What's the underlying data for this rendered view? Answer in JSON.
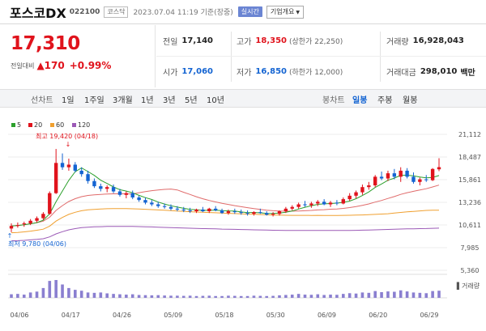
{
  "header": {
    "title": "포스코DX",
    "code": "022100",
    "market": "코스닥",
    "datetime": "2023.07.04 11:19 기준(장중)",
    "realtime_label": "실시간",
    "company_button": "기업개요"
  },
  "price": {
    "current": "17,310",
    "change_label": "전일대비",
    "change": "▲170",
    "change_pct": "+0.99%"
  },
  "stats": {
    "prev_label": "전일",
    "prev": "17,140",
    "high_label": "고가",
    "high": "18,350",
    "upper_limit": "(상한가 22,250)",
    "volume_label": "거래량",
    "volume": "16,928,043",
    "open_label": "시가",
    "open": "17,060",
    "low_label": "저가",
    "low": "16,850",
    "lower_limit": "(하한가 12,000)",
    "amount_label": "거래대금",
    "amount": "298,010",
    "amount_unit": "백만"
  },
  "toolbar": {
    "line_label": "선차트",
    "periods": [
      "1일",
      "1주일",
      "3개월",
      "1년",
      "3년",
      "5년",
      "10년"
    ],
    "candle_label": "봉차트",
    "candles": [
      "일봉",
      "주봉",
      "월봉"
    ],
    "active_candle": "일봉"
  },
  "chart_data": {
    "type": "candlestick",
    "legend": [
      {
        "name": "5",
        "color": "#2ca02c"
      },
      {
        "name": "20",
        "color": "#e0131c"
      },
      {
        "name": "60",
        "color": "#f0a030"
      },
      {
        "name": "120",
        "color": "#9b59b6"
      }
    ],
    "y_ticks": [
      "21,112",
      "18,487",
      "15,861",
      "13,236",
      "10,611",
      "7,985",
      "5,360"
    ],
    "ylim": [
      5360,
      21112
    ],
    "x_ticks": [
      "04/06",
      "04/17",
      "04/26",
      "05/09",
      "05/18",
      "05/30",
      "06/09",
      "06/20",
      "06/29"
    ],
    "high_annotation": "최고 19,420 (04/18)",
    "low_annotation": "최저 9,780 (04/06)",
    "volume_label": "거래량",
    "candles": [
      [
        10200,
        10800,
        9780,
        10500
      ],
      [
        10500,
        10900,
        10300,
        10600
      ],
      [
        10700,
        11000,
        10400,
        10800
      ],
      [
        10800,
        11300,
        10600,
        11100
      ],
      [
        11100,
        11600,
        10900,
        11400
      ],
      [
        11400,
        12100,
        11200,
        11900
      ],
      [
        11900,
        14500,
        11800,
        14300
      ],
      [
        14300,
        19420,
        14200,
        17800
      ],
      [
        17800,
        18900,
        17000,
        17300
      ],
      [
        17300,
        18300,
        16900,
        17600
      ],
      [
        17600,
        17900,
        16700,
        16900
      ],
      [
        16900,
        17300,
        16200,
        16500
      ],
      [
        16500,
        16900,
        15400,
        15700
      ],
      [
        15700,
        16000,
        14900,
        15100
      ],
      [
        15100,
        15400,
        14500,
        14800
      ],
      [
        14800,
        15200,
        14400,
        15000
      ],
      [
        15000,
        15300,
        14300,
        14500
      ],
      [
        14500,
        14800,
        13900,
        14100
      ],
      [
        14100,
        14500,
        13700,
        14300
      ],
      [
        14300,
        14600,
        13600,
        13800
      ],
      [
        13800,
        14000,
        13300,
        13500
      ],
      [
        13500,
        13800,
        13000,
        13200
      ],
      [
        13200,
        13500,
        12800,
        13000
      ],
      [
        13000,
        13300,
        12600,
        12800
      ],
      [
        12800,
        13100,
        12500,
        12700
      ],
      [
        12700,
        13000,
        12300,
        12500
      ],
      [
        12500,
        12800,
        12200,
        12400
      ],
      [
        12400,
        12700,
        12100,
        12300
      ],
      [
        12300,
        12600,
        12000,
        12200
      ],
      [
        12200,
        12500,
        12000,
        12400
      ],
      [
        12400,
        12700,
        12100,
        12200
      ],
      [
        12200,
        12600,
        12000,
        12500
      ],
      [
        12500,
        12800,
        12200,
        12300
      ],
      [
        12300,
        12500,
        11900,
        12000
      ],
      [
        12000,
        12400,
        11800,
        12200
      ],
      [
        12200,
        12500,
        11900,
        12100
      ],
      [
        12100,
        12400,
        11800,
        12000
      ],
      [
        12000,
        12300,
        11700,
        11900
      ],
      [
        11900,
        12200,
        11700,
        12100
      ],
      [
        12100,
        12500,
        11900,
        12000
      ],
      [
        12000,
        12200,
        11700,
        11800
      ],
      [
        11800,
        12100,
        11600,
        11900
      ],
      [
        11900,
        12300,
        11700,
        12200
      ],
      [
        12200,
        12700,
        12000,
        12500
      ],
      [
        12500,
        12900,
        12300,
        12700
      ],
      [
        12700,
        13200,
        12500,
        13000
      ],
      [
        13000,
        13400,
        12700,
        12900
      ],
      [
        12900,
        13300,
        12600,
        13100
      ],
      [
        13100,
        13500,
        12800,
        13300
      ],
      [
        13300,
        13600,
        12900,
        13000
      ],
      [
        13000,
        13400,
        12700,
        13200
      ],
      [
        13200,
        13500,
        12900,
        13100
      ],
      [
        13100,
        13800,
        13000,
        13600
      ],
      [
        13600,
        14300,
        13400,
        14000
      ],
      [
        14000,
        14600,
        13700,
        14400
      ],
      [
        14400,
        15300,
        14100,
        15000
      ],
      [
        15000,
        15600,
        14700,
        15200
      ],
      [
        15200,
        16400,
        15000,
        16200
      ],
      [
        16200,
        16800,
        15800,
        16000
      ],
      [
        16000,
        16900,
        15700,
        16600
      ],
      [
        16600,
        17100,
        15900,
        16200
      ],
      [
        16200,
        17300,
        15600,
        16900
      ],
      [
        16900,
        17200,
        16000,
        16200
      ],
      [
        16200,
        16700,
        15400,
        15600
      ],
      [
        15600,
        16100,
        15200,
        15900
      ],
      [
        15900,
        16400,
        15600,
        15800
      ],
      [
        15800,
        17200,
        15700,
        17100
      ],
      [
        17060,
        18350,
        16850,
        17310
      ]
    ],
    "volumes": [
      0.2,
      0.22,
      0.18,
      0.3,
      0.35,
      0.55,
      0.95,
      1.0,
      0.75,
      0.55,
      0.45,
      0.4,
      0.3,
      0.28,
      0.3,
      0.25,
      0.22,
      0.2,
      0.18,
      0.2,
      0.16,
      0.15,
      0.14,
      0.15,
      0.13,
      0.12,
      0.12,
      0.11,
      0.12,
      0.1,
      0.11,
      0.12,
      0.1,
      0.1,
      0.12,
      0.11,
      0.1,
      0.1,
      0.12,
      0.11,
      0.1,
      0.11,
      0.14,
      0.16,
      0.18,
      0.22,
      0.18,
      0.17,
      0.2,
      0.16,
      0.18,
      0.17,
      0.22,
      0.26,
      0.24,
      0.3,
      0.28,
      0.38,
      0.32,
      0.36,
      0.34,
      0.42,
      0.36,
      0.3,
      0.28,
      0.26,
      0.38,
      0.4
    ]
  }
}
